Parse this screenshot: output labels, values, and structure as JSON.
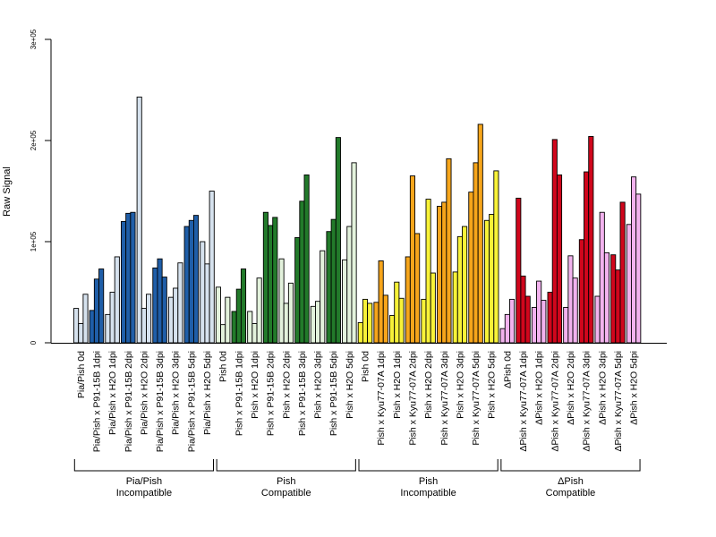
{
  "chart_data": {
    "type": "bar",
    "ylabel": "Raw Signal",
    "ylim": [
      0,
      300000
    ],
    "yticks": [
      0,
      100000,
      200000,
      300000
    ],
    "ytick_labels": [
      "0",
      "1e+05",
      "2e+05",
      "3e+05"
    ],
    "bars_per_category": 3,
    "categories": [
      "Pia/Pish 0d",
      "Pia/Pish x P91-15B 1dpi",
      "Pia/Pish x H2O 1dpi",
      "Pia/Pish x P91-15B 2dpi",
      "Pia/Pish x H2O 2dpi",
      "Pia/Pish x P91-15B 3dpi",
      "Pia/Pish x H2O 3dpi",
      "Pia/Pish x P91-15B 5dpi",
      "Pia/Pish x H2O 5dpi",
      "Pish 0d",
      "Pish x P91-15B 1dpi",
      "Pish x H2O 1dpi",
      "Pish x P91-15B 2dpi",
      "Pish x H2O 2dpi",
      "Pish x P91-15B 3dpi",
      "Pish x H2O 3dpi",
      "Pish x P91-15B 5dpi",
      "Pish x H2O 5dpi",
      "Pish 0d",
      "Pish x Kyu77-07A 1dpi",
      "Pish x H2O 1dpi",
      "Pish x Kyu77-07A 2dpi",
      "Pish x H2O 2dpi",
      "Pish x Kyu77-07A 3dpi",
      "Pish x H2O 3dpi",
      "Pish x Kyu77-07A 5dpi",
      "Pish x H2O 5dpi",
      "ΔPish 0d",
      "ΔPish x Kyu77-07A 1dpi",
      "ΔPish x H2O 1dpi",
      "ΔPish x Kyu77-07A 2dpi",
      "ΔPish x H2O 2dpi",
      "ΔPish x Kyu77-07A 3dpi",
      "ΔPish x H2O 3dpi",
      "ΔPish x Kyu77-07A 5dpi",
      "ΔPish x H2O 5dpi"
    ],
    "values": [
      [
        34000,
        19000,
        48000
      ],
      [
        32000,
        63000,
        73000
      ],
      [
        28000,
        50000,
        85000
      ],
      [
        120000,
        128000,
        129000
      ],
      [
        243000,
        34000,
        48000
      ],
      [
        74000,
        83000,
        65000
      ],
      [
        45000,
        54000,
        79000
      ],
      [
        115000,
        121000,
        126000
      ],
      [
        100000,
        78000,
        150000
      ],
      [
        55000,
        18000,
        45000
      ],
      [
        31000,
        53000,
        73000
      ],
      [
        31000,
        19000,
        64000
      ],
      [
        129000,
        116000,
        124000
      ],
      [
        83000,
        39000,
        59000
      ],
      [
        104000,
        140000,
        166000
      ],
      [
        36000,
        41000,
        91000
      ],
      [
        110000,
        122000,
        203000
      ],
      [
        82000,
        115000,
        178000
      ],
      [
        20000,
        43000,
        39000
      ],
      [
        40000,
        81000,
        47000
      ],
      [
        27000,
        60000,
        44000
      ],
      [
        85000,
        165000,
        108000
      ],
      [
        43000,
        142000,
        69000
      ],
      [
        135000,
        139000,
        182000
      ],
      [
        70000,
        105000,
        115000
      ],
      [
        149000,
        178000,
        216000
      ],
      [
        121000,
        127000,
        170000
      ],
      [
        14000,
        28000,
        43000
      ],
      [
        143000,
        66000,
        46000
      ],
      [
        35000,
        61000,
        42000
      ],
      [
        50000,
        201000,
        166000
      ],
      [
        35000,
        86000,
        64000
      ],
      [
        102000,
        169000,
        204000
      ],
      [
        46000,
        129000,
        89000
      ],
      [
        87000,
        72000,
        139000
      ],
      [
        117000,
        164000,
        147000
      ]
    ],
    "colors": [
      "#d6e2ee",
      "#1f5ea8",
      "#d6e2ee",
      "#1f5ea8",
      "#d6e2ee",
      "#1f5ea8",
      "#d6e2ee",
      "#1f5ea8",
      "#d6e2ee",
      "#e3f2dc",
      "#227a2a",
      "#e3f2dc",
      "#227a2a",
      "#e3f2dc",
      "#227a2a",
      "#e3f2dc",
      "#227a2a",
      "#e3f2dc",
      "#f8f238",
      "#f6a51b",
      "#f8f238",
      "#f6a51b",
      "#f8f238",
      "#f6a51b",
      "#f8f238",
      "#f6a51b",
      "#f8f238",
      "#f2b2ee",
      "#d0061c",
      "#f2b2ee",
      "#d0061c",
      "#f2b2ee",
      "#d0061c",
      "#f2b2ee",
      "#d0061c",
      "#f2b2ee"
    ],
    "groups": [
      {
        "line1": "Pia/Pish",
        "line2": "Incompatible",
        "start": 0,
        "end": 8
      },
      {
        "line1": "Pish",
        "line2": "Compatible",
        "start": 9,
        "end": 17
      },
      {
        "line1": "Pish",
        "line2": "Incompatible",
        "start": 18,
        "end": 26
      },
      {
        "line1": "ΔPish",
        "line2": "Compatible",
        "start": 27,
        "end": 35
      }
    ],
    "grid": false,
    "legend": "none"
  }
}
